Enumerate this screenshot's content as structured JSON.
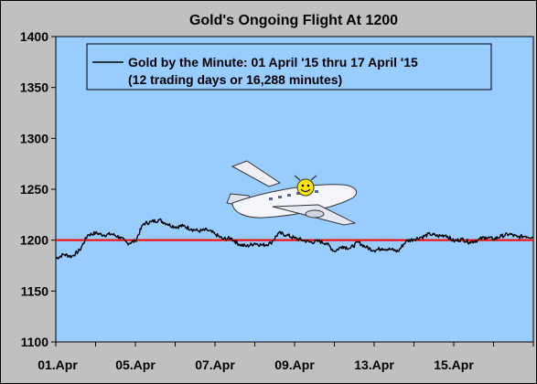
{
  "chart_data": {
    "type": "line",
    "title": "Gold's Ongoing Flight At 1200",
    "xlabel": "",
    "ylabel": "",
    "ylim": [
      1100,
      1400
    ],
    "yticks": [
      1100,
      1150,
      1200,
      1250,
      1300,
      1350,
      1400
    ],
    "xticks": [
      "01.Apr",
      "05.Apr",
      "07.Apr",
      "09.Apr",
      "13.Apr",
      "15.Apr"
    ],
    "grid": false,
    "legend_position": "top",
    "legend_lines": [
      "Gold by the Minute:  01 April '15 thru 17 April '15",
      "(12 trading days or 16,288 minutes)"
    ],
    "reference_line": {
      "value": 1200,
      "color": "#ff0000"
    },
    "series": [
      {
        "name": "Gold by the Minute",
        "color": "#000000",
        "x_days": [
          0,
          0.2,
          0.4,
          0.6,
          0.8,
          1.0,
          1.2,
          1.4,
          1.6,
          1.8,
          2.0,
          2.2,
          2.4,
          2.6,
          2.8,
          3.0,
          3.2,
          3.4,
          3.6,
          3.8,
          4.0,
          4.2,
          4.4,
          4.6,
          4.8,
          5.0,
          5.2,
          5.4,
          5.6,
          5.8,
          6.0,
          6.2,
          6.4,
          6.6,
          6.8,
          7.0,
          7.2,
          7.4,
          7.6,
          7.8,
          8.0,
          8.2,
          8.4,
          8.6,
          8.8,
          9.0,
          9.2,
          9.4,
          9.6,
          9.8,
          10.0,
          10.2,
          10.4,
          10.6,
          10.8,
          11.0,
          11.2,
          11.4,
          11.6,
          11.8,
          12.0
        ],
        "values": [
          1182,
          1186,
          1184,
          1190,
          1205,
          1207,
          1205,
          1206,
          1203,
          1197,
          1199,
          1216,
          1218,
          1220,
          1216,
          1213,
          1214,
          1211,
          1209,
          1210,
          1206,
          1201,
          1202,
          1196,
          1194,
          1197,
          1195,
          1197,
          1207,
          1205,
          1202,
          1200,
          1198,
          1199,
          1197,
          1189,
          1194,
          1192,
          1198,
          1193,
          1190,
          1192,
          1191,
          1189,
          1199,
          1201,
          1203,
          1206,
          1204,
          1205,
          1199,
          1201,
          1198,
          1200,
          1203,
          1201,
          1204,
          1206,
          1203,
          1204,
          1203
        ]
      }
    ]
  }
}
